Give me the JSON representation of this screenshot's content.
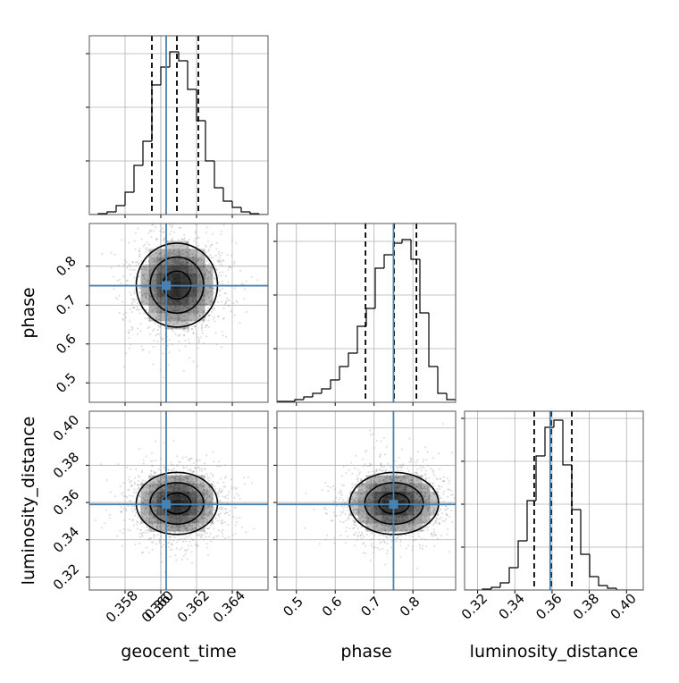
{
  "chart_data": {
    "type": "corner",
    "truth_color": "#4682b4",
    "grid": true,
    "parameters": [
      {
        "name": "geocent_time",
        "lim": [
          0.356,
          0.366
        ],
        "ticks": [
          0.358,
          0.36,
          {
            "value": 0.36,
            "label": "0.360"
          },
          0.362,
          0.364
        ],
        "truth": 0.3603,
        "quantiles": [
          0.3595,
          0.3609,
          0.3621
        ],
        "bins": [
          0.356,
          0.3565,
          0.357,
          0.3575,
          0.358,
          0.3585,
          0.359,
          0.3595,
          0.36,
          0.3605,
          0.361,
          0.3615,
          0.362,
          0.3625,
          0.363,
          0.3635,
          0.364,
          0.3645,
          0.365,
          0.3655,
          0.366
        ],
        "counts": [
          0,
          1,
          3,
          10,
          25,
          55,
          82,
          145,
          165,
          182,
          172,
          140,
          105,
          60,
          30,
          15,
          8,
          3,
          1,
          0
        ],
        "hist_ylim": [
          0,
          200
        ],
        "hist_yticks": [
          60,
          120,
          180
        ]
      },
      {
        "name": "phase",
        "lim": [
          0.45,
          0.91
        ],
        "ticks": [
          0.5,
          0.6,
          0.7,
          0.8
        ],
        "truth": 0.75,
        "quantiles": [
          0.678,
          0.7515,
          0.809
        ],
        "bins": [
          0.45,
          0.473,
          0.496,
          0.519,
          0.542,
          0.565,
          0.588,
          0.611,
          0.634,
          0.657,
          0.68,
          0.703,
          0.726,
          0.749,
          0.772,
          0.795,
          0.818,
          0.841,
          0.864,
          0.887,
          0.91
        ],
        "counts": [
          1,
          1,
          3,
          6,
          10,
          15,
          25,
          40,
          55,
          85,
          105,
          150,
          165,
          178,
          182,
          160,
          100,
          40,
          10,
          3
        ],
        "hist_ylim": [
          0,
          200
        ],
        "hist_yticks": [
          60,
          120,
          180
        ]
      },
      {
        "name": "luminosity_distance",
        "lim": [
          0.313,
          0.409
        ],
        "ticks": [
          0.32,
          0.34,
          0.36,
          0.38,
          {
            "value": 0.4,
            "label": "0.40"
          }
        ],
        "truth": 0.359,
        "quantiles": [
          0.3504,
          0.3595,
          0.3706
        ],
        "bins": [
          0.313,
          0.3178,
          0.3226,
          0.3274,
          0.3322,
          0.337,
          0.3418,
          0.3466,
          0.3514,
          0.3562,
          0.361,
          0.3658,
          0.3706,
          0.3754,
          0.3802,
          0.385,
          0.3898,
          0.3946,
          0.3994,
          0.4042,
          0.409
        ],
        "counts": [
          0,
          0,
          1,
          3,
          8,
          25,
          55,
          100,
          150,
          182,
          190,
          140,
          90,
          40,
          15,
          5,
          2,
          0,
          0,
          0
        ],
        "hist_ylim": [
          0,
          200
        ],
        "hist_yticks": [
          48,
          96,
          144,
          192
        ]
      }
    ]
  }
}
